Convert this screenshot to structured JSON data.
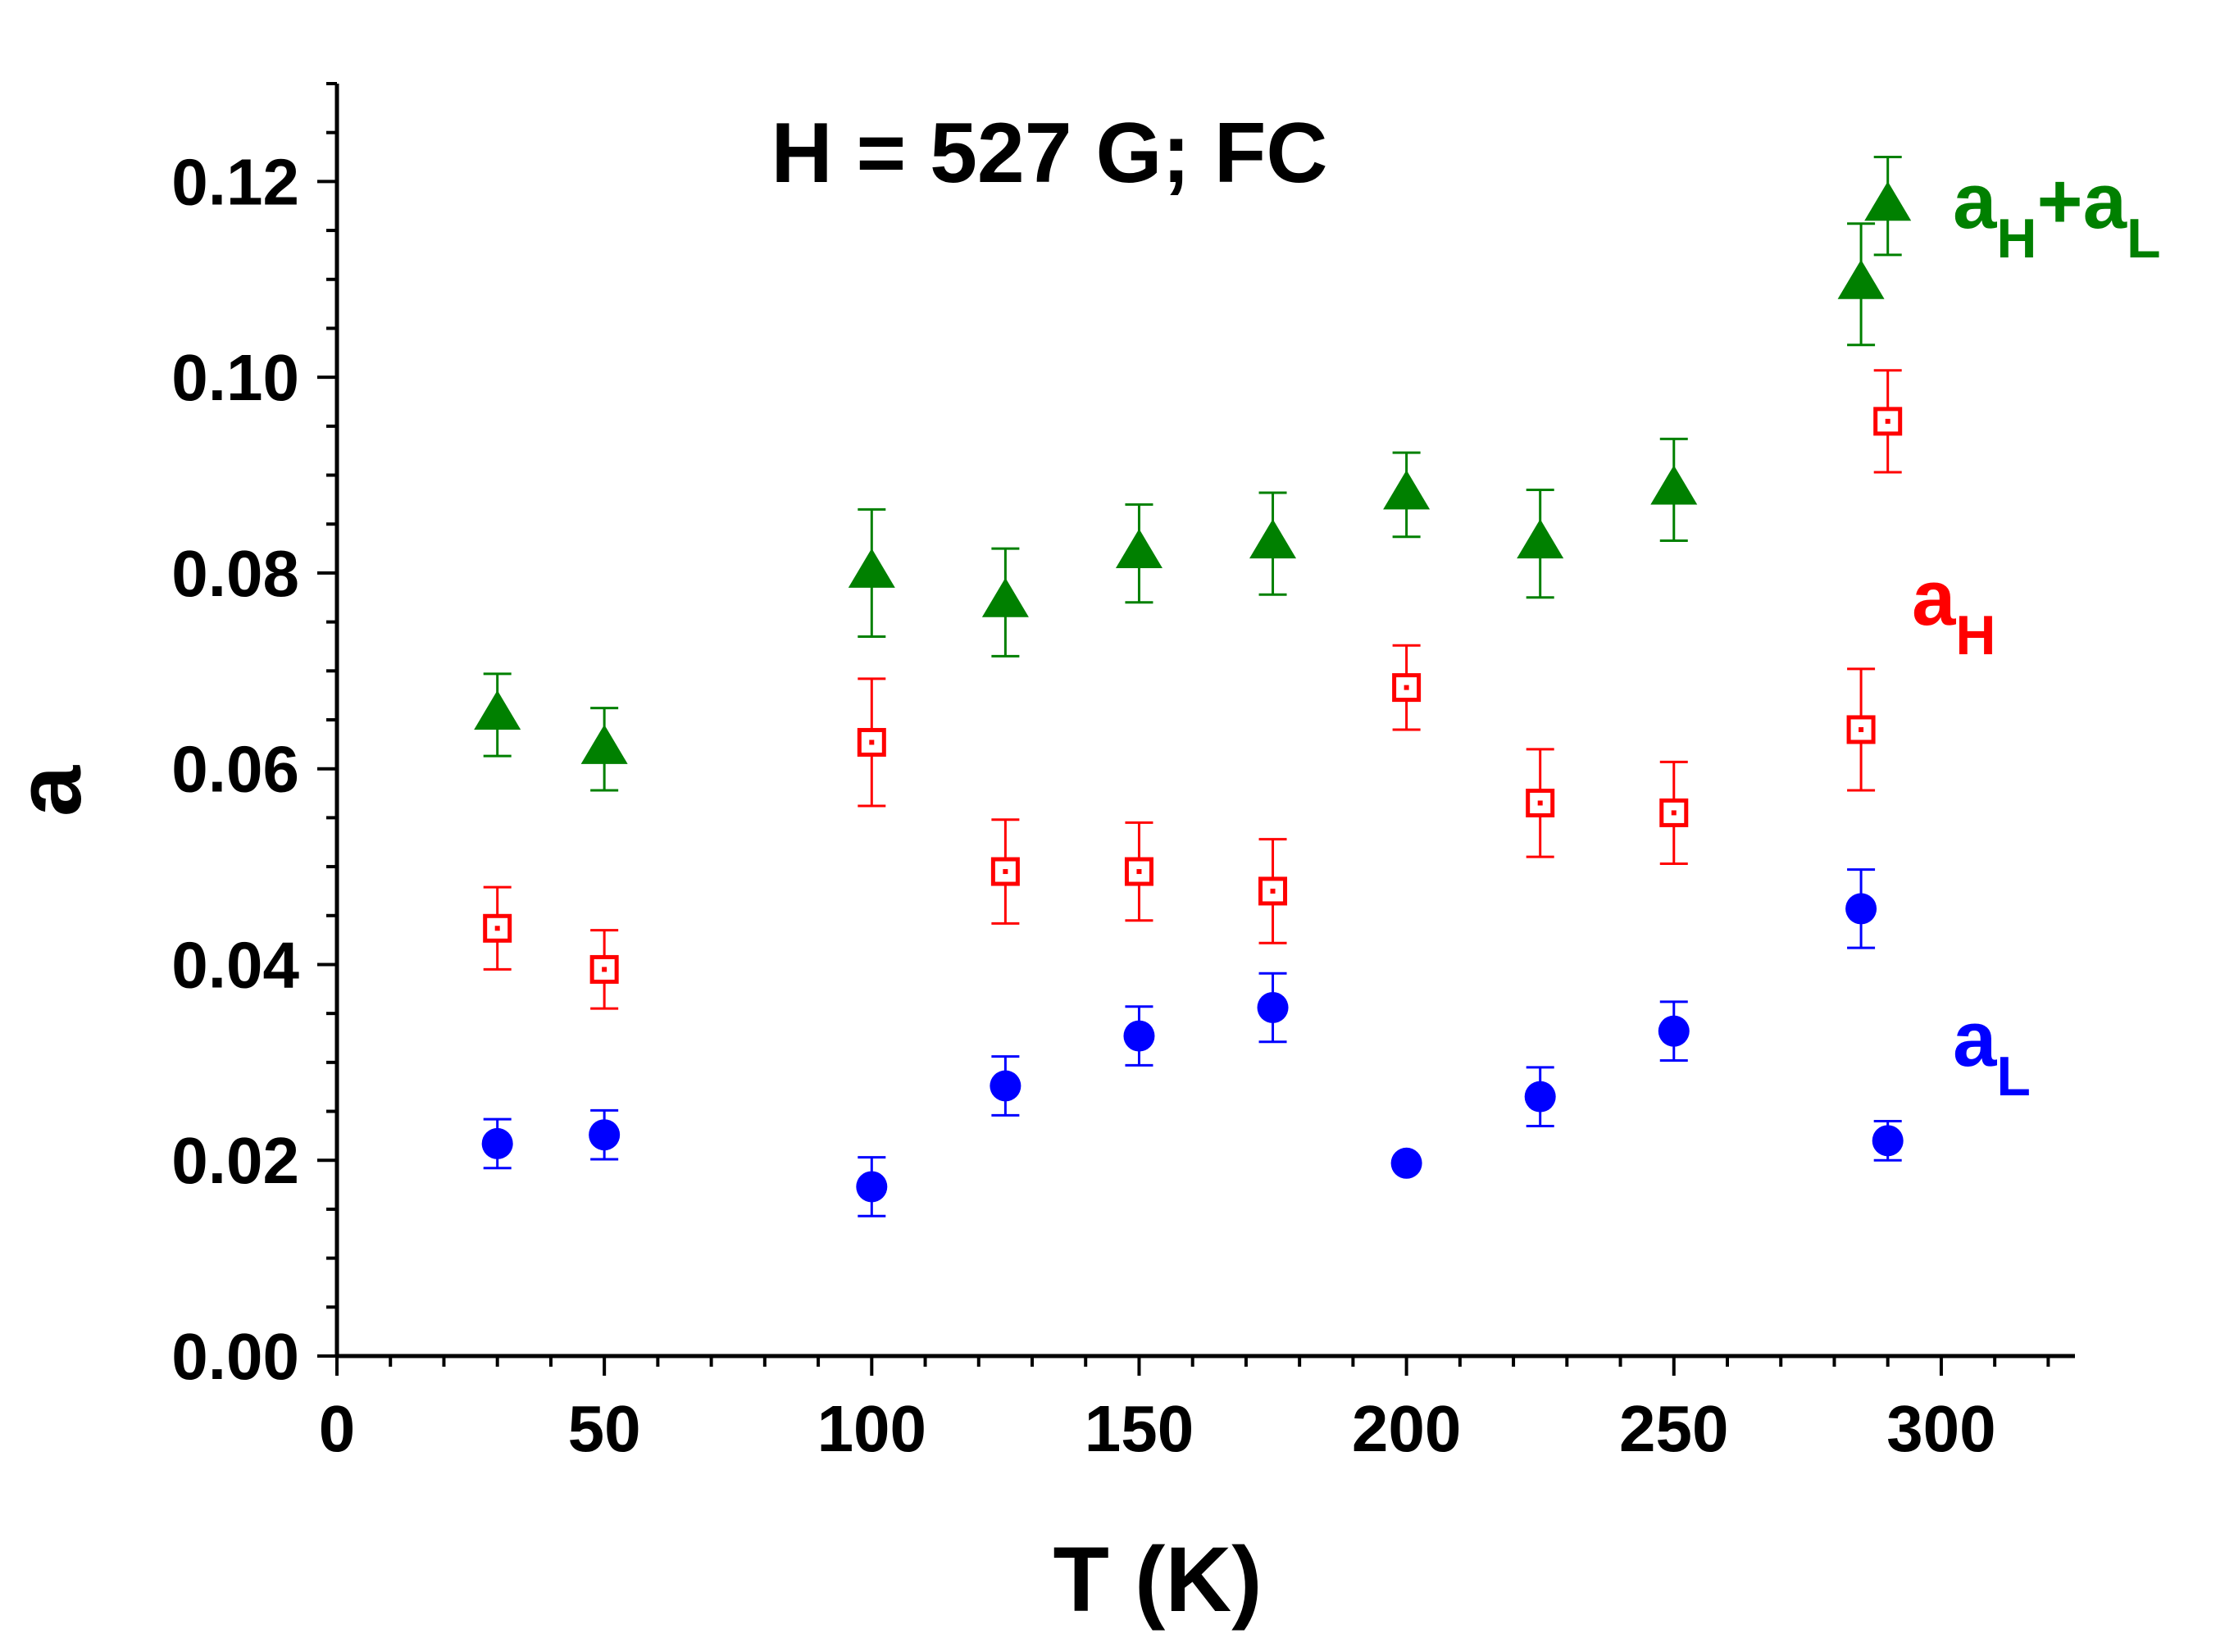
{
  "chart_data": {
    "type": "scatter",
    "title": "H = 527 G;  FC",
    "xlabel": "T (K)",
    "ylabel": "a",
    "xlim": [
      0,
      325
    ],
    "ylim": [
      0,
      0.13
    ],
    "x_ticks": [
      "0",
      "50",
      "100",
      "150",
      "200",
      "250",
      "300"
    ],
    "y_ticks": [
      "0.00",
      "0.02",
      "0.04",
      "0.06",
      "0.08",
      "0.10",
      "0.12"
    ],
    "grid": false,
    "series": [
      {
        "name": "aH+aL",
        "label_main": "a",
        "label_sub_1": "H",
        "label_plus": "+a",
        "label_sub_2": "L",
        "color": "#008000",
        "marker": "triangle",
        "points": [
          {
            "x": 30,
            "y": 0.0655,
            "err": 0.0042
          },
          {
            "x": 50,
            "y": 0.062,
            "err": 0.0042
          },
          {
            "x": 100,
            "y": 0.08,
            "err": 0.0065
          },
          {
            "x": 125,
            "y": 0.077,
            "err": 0.0055
          },
          {
            "x": 150,
            "y": 0.082,
            "err": 0.005
          },
          {
            "x": 175,
            "y": 0.083,
            "err": 0.0052
          },
          {
            "x": 200,
            "y": 0.088,
            "err": 0.0043
          },
          {
            "x": 225,
            "y": 0.083,
            "err": 0.0055
          },
          {
            "x": 250,
            "y": 0.0885,
            "err": 0.0052
          },
          {
            "x": 285,
            "y": 0.1095,
            "err": 0.0062
          },
          {
            "x": 290,
            "y": 0.1175,
            "err": 0.005
          }
        ]
      },
      {
        "name": "aH",
        "label_main": "a",
        "label_sub_1": "H",
        "color": "#ff0000",
        "marker": "open-square",
        "points": [
          {
            "x": 30,
            "y": 0.0437,
            "err": 0.0042
          },
          {
            "x": 50,
            "y": 0.0395,
            "err": 0.004
          },
          {
            "x": 100,
            "y": 0.0627,
            "err": 0.0065
          },
          {
            "x": 125,
            "y": 0.0495,
            "err": 0.0053
          },
          {
            "x": 150,
            "y": 0.0495,
            "err": 0.005
          },
          {
            "x": 175,
            "y": 0.0475,
            "err": 0.0053
          },
          {
            "x": 200,
            "y": 0.0683,
            "err": 0.0043
          },
          {
            "x": 225,
            "y": 0.0565,
            "err": 0.0055
          },
          {
            "x": 250,
            "y": 0.0555,
            "err": 0.0052
          },
          {
            "x": 285,
            "y": 0.064,
            "err": 0.0062
          },
          {
            "x": 290,
            "y": 0.0955,
            "err": 0.0052
          }
        ]
      },
      {
        "name": "aL",
        "label_main": "a",
        "label_sub_1": "L",
        "color": "#0000ff",
        "marker": "circle",
        "points": [
          {
            "x": 30,
            "y": 0.0217,
            "err": 0.0025
          },
          {
            "x": 50,
            "y": 0.0226,
            "err": 0.0025
          },
          {
            "x": 100,
            "y": 0.0173,
            "err": 0.003
          },
          {
            "x": 125,
            "y": 0.0276,
            "err": 0.003
          },
          {
            "x": 150,
            "y": 0.0327,
            "err": 0.003
          },
          {
            "x": 175,
            "y": 0.0356,
            "err": 0.0035
          },
          {
            "x": 200,
            "y": 0.0197,
            "err": 0
          },
          {
            "x": 225,
            "y": 0.0265,
            "err": 0.003
          },
          {
            "x": 250,
            "y": 0.0332,
            "err": 0.003
          },
          {
            "x": 285,
            "y": 0.0457,
            "err": 0.004
          },
          {
            "x": 290,
            "y": 0.022,
            "err": 0.002
          }
        ]
      }
    ]
  }
}
